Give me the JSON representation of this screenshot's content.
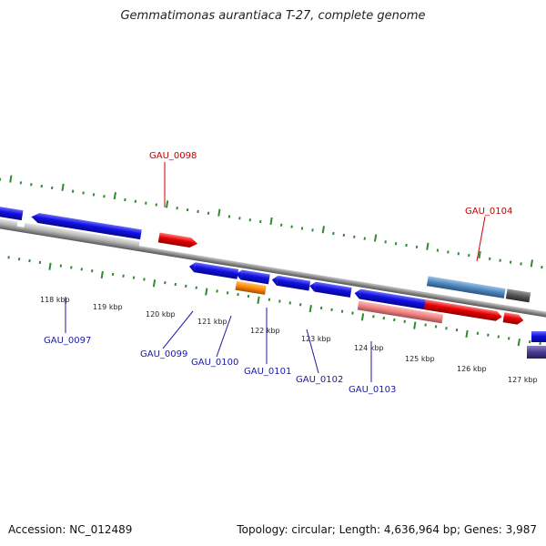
{
  "title": "Gemmatimonas aurantiaca T-27, complete genome",
  "footer": {
    "accession": "Accession: NC_012489",
    "summary": "Topology: circular; Length: 4,636,964 bp; Genes: 3,987"
  },
  "ticks": [
    "118 kbp",
    "119 kbp",
    "120 kbp",
    "121 kbp",
    "122 kbp",
    "123 kbp",
    "124 kbp",
    "125 kbp",
    "126 kbp",
    "127 kbp"
  ],
  "gene_labels": {
    "gau_0097": "GAU_0097",
    "gau_0098": "GAU_0098",
    "gau_0099": "GAU_0099",
    "gau_0100": "GAU_0100",
    "gau_0101": "GAU_0101",
    "gau_0102": "GAU_0102",
    "gau_0103": "GAU_0103",
    "gau_0104": "GAU_0104"
  },
  "colors": {
    "blue": "#1010e0",
    "red": "#e80000",
    "orange": "#ff8800",
    "grey": "#b8b8b8",
    "pink": "#f08080",
    "steel": "#4f86bd",
    "dark_grey": "#555555",
    "navy": "#4a3c90",
    "tick_green": "#2e8b2e",
    "backbone": "#888888",
    "label_blue": "#1a1aa0",
    "label_red": "#c80000"
  }
}
